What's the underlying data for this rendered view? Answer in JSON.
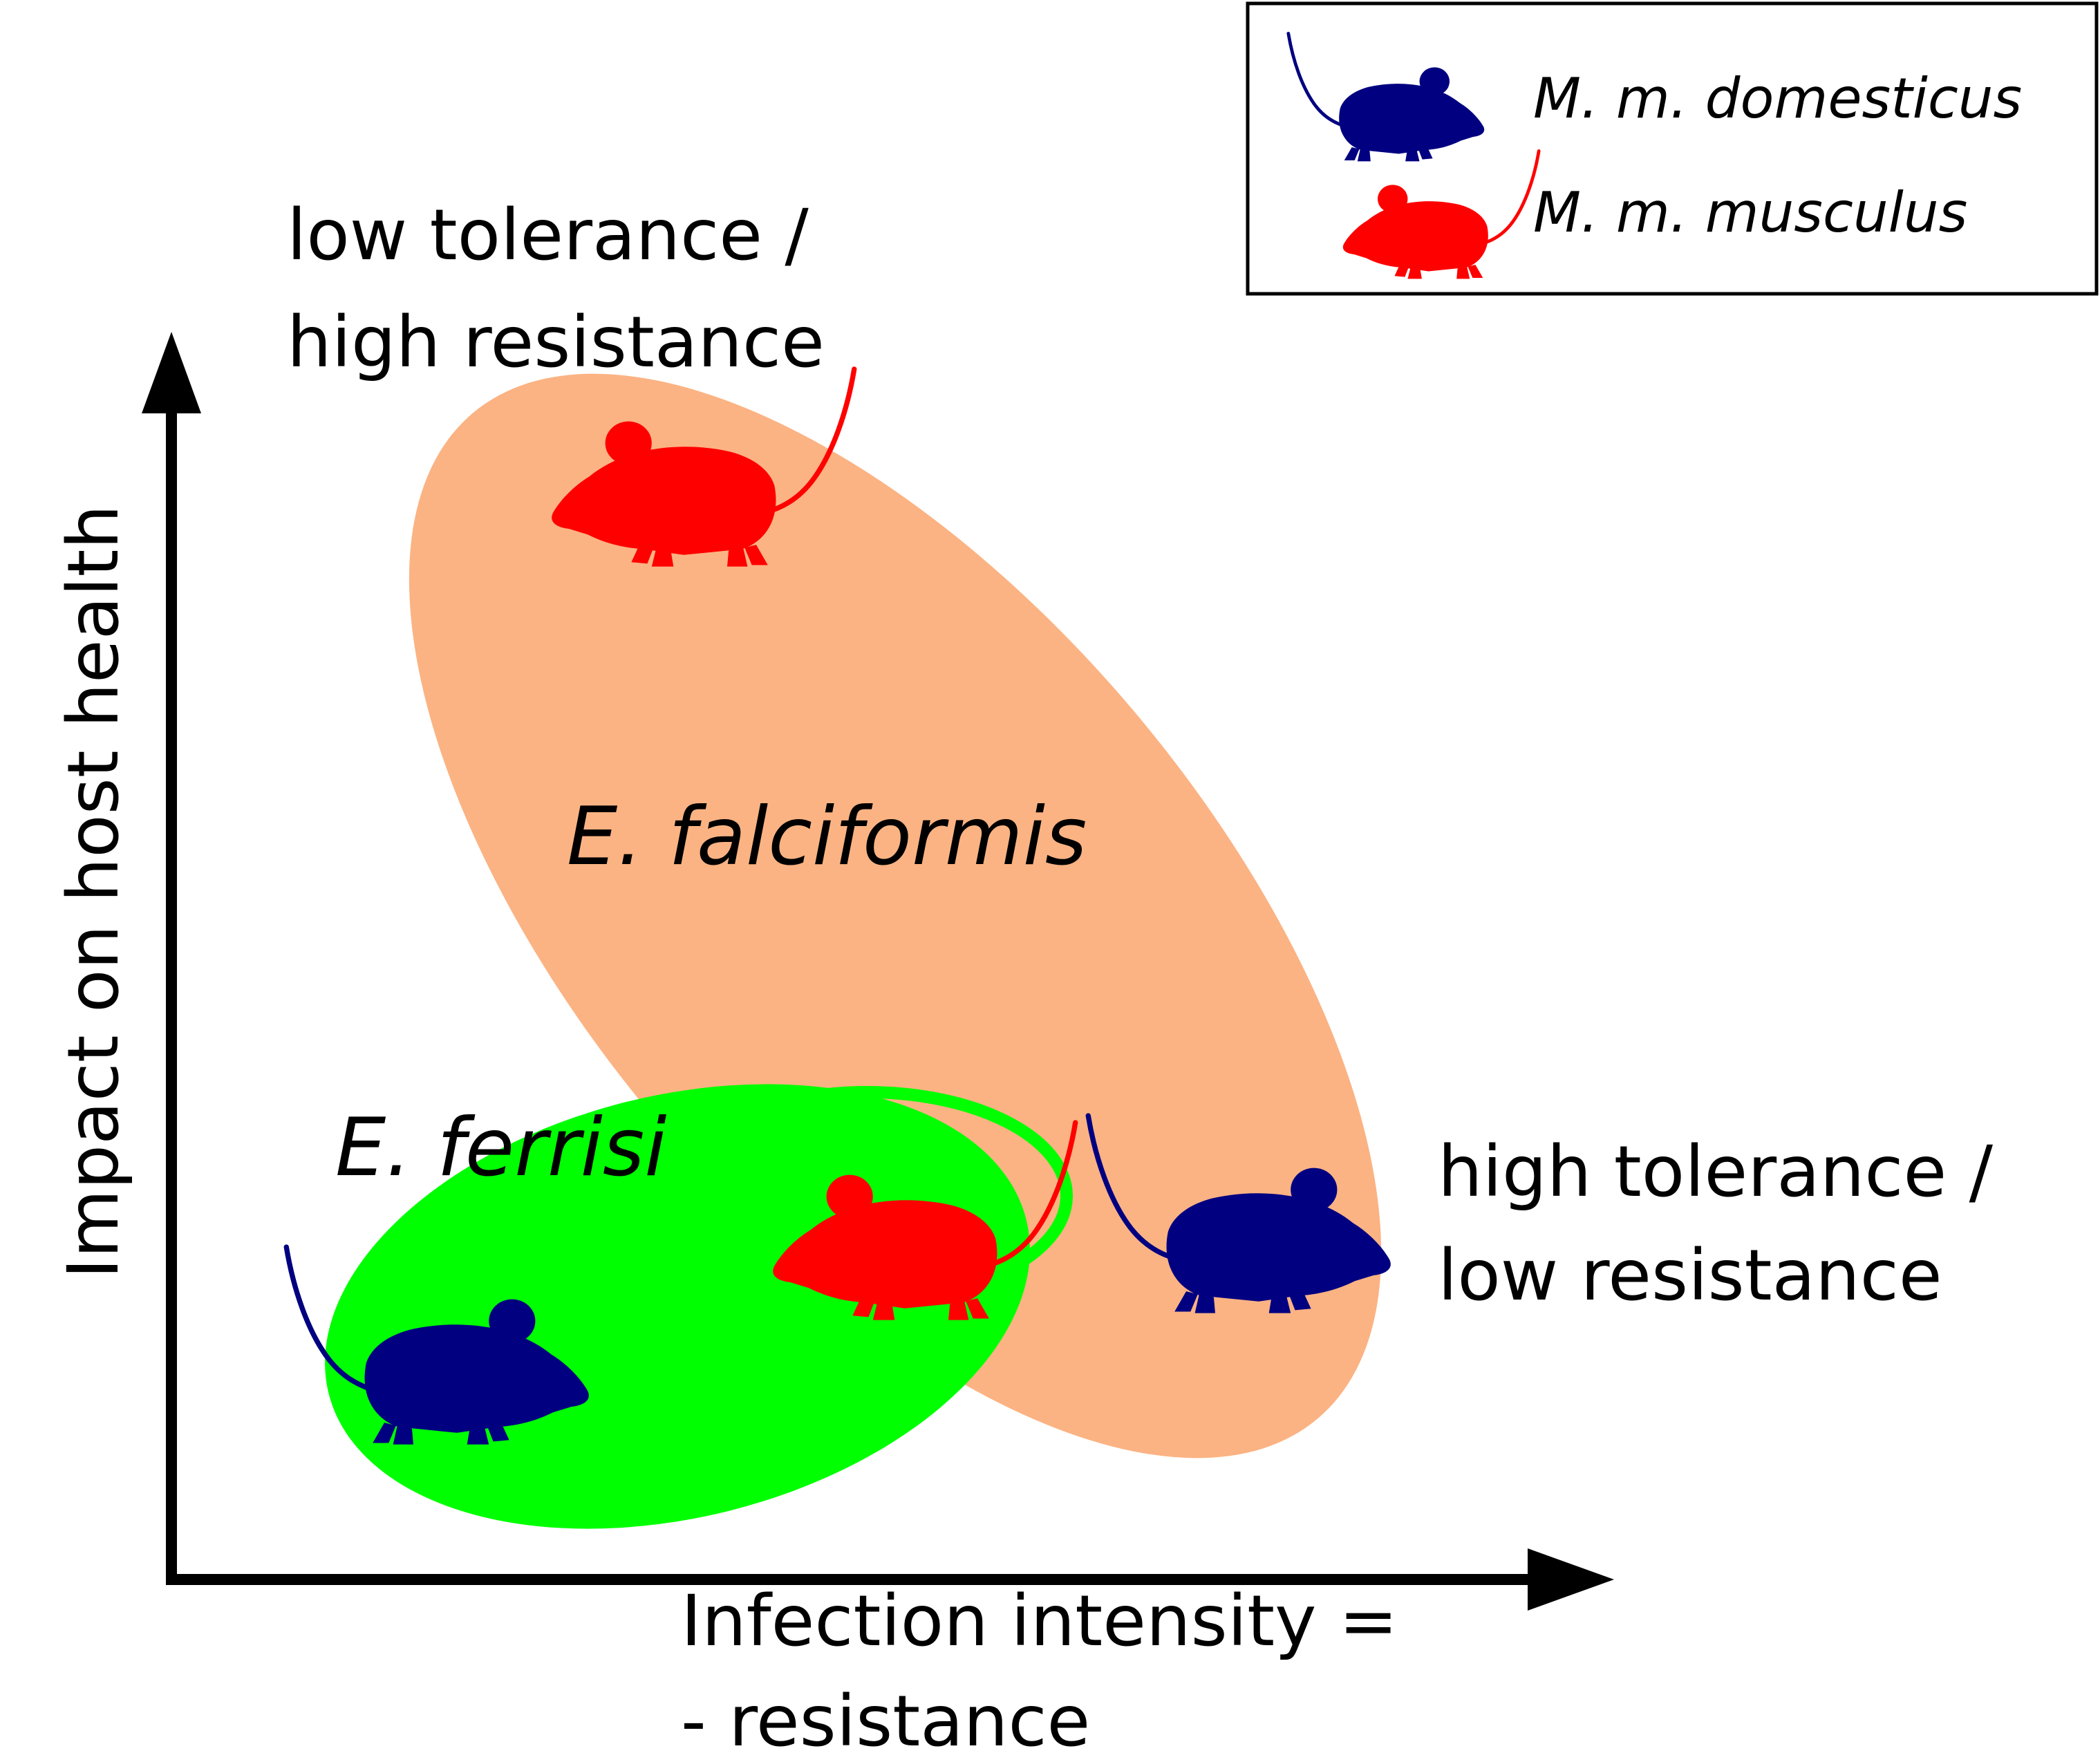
{
  "axes": {
    "y_label": "Impact on host health",
    "x_label_line1": "Infection intensity =",
    "x_label_line2": "- resistance"
  },
  "corners": {
    "top_left_line1": "low tolerance /",
    "top_left_line2": "high resistance",
    "right_line1": "high tolerance /",
    "right_line2": "low resistance"
  },
  "groups": {
    "falciformis": {
      "label": "E. falciformis",
      "color": "#FBB383"
    },
    "ferrisi": {
      "label": "E. ferrisi",
      "color": "#00FF00"
    }
  },
  "legend": {
    "items": [
      {
        "label": "M. m. domesticus",
        "color": "#000080",
        "icon": "blue-mouse-icon"
      },
      {
        "label": "M. m. musculus",
        "color": "#FF0000",
        "icon": "red-mouse-icon"
      }
    ]
  },
  "mice": [
    {
      "subspecies": "M. m. musculus",
      "color": "#FF0000",
      "region": "falciformis-top"
    },
    {
      "subspecies": "M. m. domesticus",
      "color": "#000080",
      "region": "falciformis-right"
    },
    {
      "subspecies": "M. m. musculus",
      "color": "#FF0000",
      "region": "overlap"
    },
    {
      "subspecies": "M. m. domesticus",
      "color": "#000080",
      "region": "ferrisi"
    }
  ]
}
